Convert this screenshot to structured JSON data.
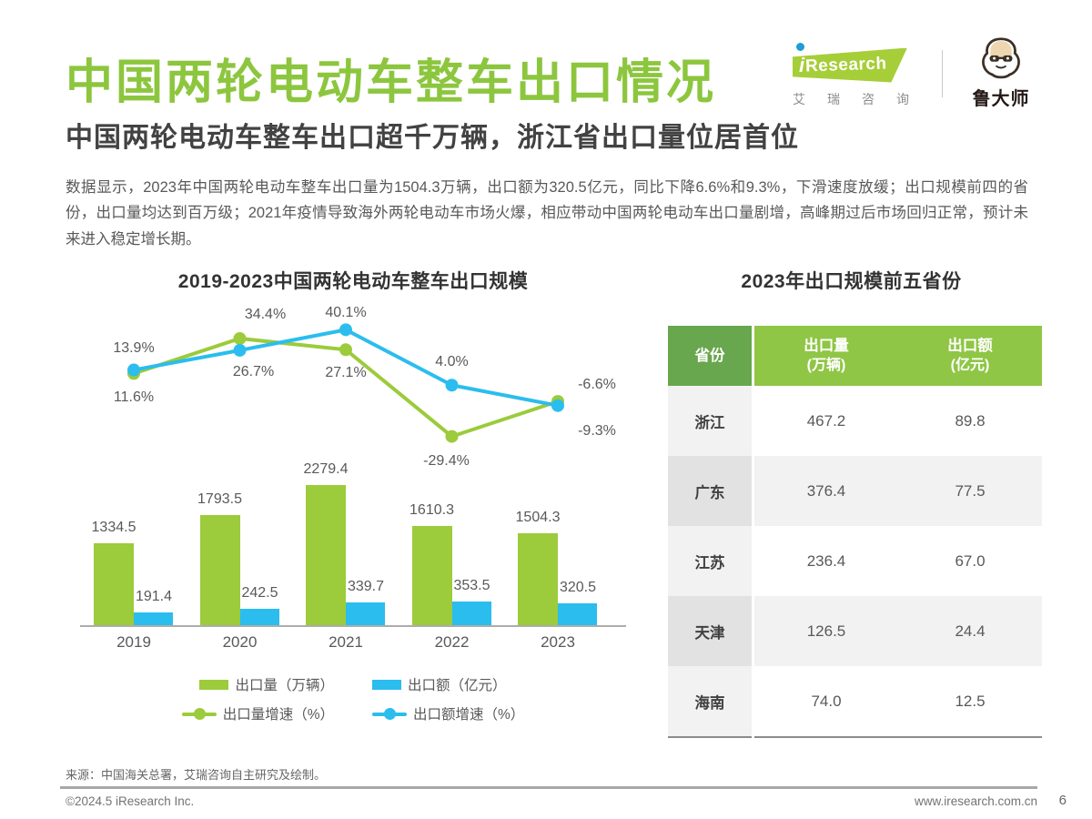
{
  "page": {
    "title": "中国两轮电动车整车出口情况",
    "subtitle": "中国两轮电动车整车出口超千万辆，浙江省出口量位居首位",
    "body": "数据显示，2023年中国两轮电动车整车出口量为1504.3万辆，出口额为320.5亿元，同比下降6.6%和9.3%，下滑速度放缓；出口规模前四的省份，出口量均达到百万级；2021年疫情导致海外两轮电动车市场火爆，相应带动中国两轮电动车出口量剧增，高峰期过后市场回归正常，预计未来进入稳定增长期。",
    "source": "来源：中国海关总署，艾瑞咨询自主研究及绘制。",
    "copyright": "©2024.5 iResearch Inc.",
    "website": "www.iresearch.com.cn",
    "page_number": "6"
  },
  "branding": {
    "iresearch_logo_i": "i",
    "iresearch_logo_text": "Research",
    "iresearch_cn": "艾瑞咨询",
    "partner_logo": "鲁大师"
  },
  "colors": {
    "green": "#9CCB3B",
    "blue": "#2BBDEE",
    "title_green": "#8CC63E",
    "table_header_green": "#8FC645",
    "table_header_dark_green": "#68A74D"
  },
  "chart_data": [
    {
      "type": "bar",
      "subtype": "combo-bar-line",
      "title": "2019-2023中国两轮电动车整车出口规模",
      "categories": [
        "2019",
        "2020",
        "2021",
        "2022",
        "2023"
      ],
      "grid": false,
      "legend_position": "bottom",
      "series": [
        {
          "name": "出口量（万辆）",
          "type": "bar",
          "color": "#9CCB3B",
          "values": [
            1334.5,
            1793.5,
            2279.4,
            1610.3,
            1504.3
          ],
          "labels": [
            "1334.5",
            "1793.5",
            "2279.4",
            "1610.3",
            "1504.3"
          ]
        },
        {
          "name": "出口额（亿元）",
          "type": "bar",
          "color": "#2BBDEE",
          "values": [
            191.4,
            242.5,
            339.7,
            353.5,
            320.5
          ],
          "labels": [
            "191.4",
            "242.5",
            "339.7",
            "353.5",
            "320.5"
          ]
        },
        {
          "name": "出口量增速（%）",
          "type": "line",
          "color": "#9CCB3B",
          "values": [
            11.6,
            34.4,
            27.1,
            -29.4,
            -6.6
          ],
          "labels": [
            "11.6%",
            "34.4%",
            "27.1%",
            "-29.4%",
            "-6.6%"
          ],
          "label_offsets": [
            [
              0,
              28
            ],
            [
              28,
              -25
            ],
            [
              0,
              27
            ],
            [
              -6,
              28
            ],
            [
              43,
              -17
            ]
          ]
        },
        {
          "name": "出口额增速（%）",
          "type": "line",
          "color": "#2BBDEE",
          "values": [
            13.9,
            26.7,
            40.1,
            4.0,
            -9.3
          ],
          "labels": [
            "13.9%",
            "26.7%",
            "40.1%",
            "4.0%",
            "-9.3%"
          ],
          "label_offsets": [
            [
              0,
              -23
            ],
            [
              15,
              25
            ],
            [
              0,
              -17
            ],
            [
              0,
              -24
            ],
            [
              43,
              29
            ]
          ]
        }
      ]
    },
    {
      "type": "table",
      "title": "2023年出口规模前五省份",
      "columns": [
        {
          "label": "省份",
          "unit": ""
        },
        {
          "label": "出口量",
          "unit": "(万辆)"
        },
        {
          "label": "出口额",
          "unit": "(亿元)"
        }
      ],
      "rows": [
        [
          "浙江",
          "467.2",
          "89.8"
        ],
        [
          "广东",
          "376.4",
          "77.5"
        ],
        [
          "江苏",
          "236.4",
          "67.0"
        ],
        [
          "天津",
          "126.5",
          "24.4"
        ],
        [
          "海南",
          "74.0",
          "12.5"
        ]
      ]
    }
  ]
}
